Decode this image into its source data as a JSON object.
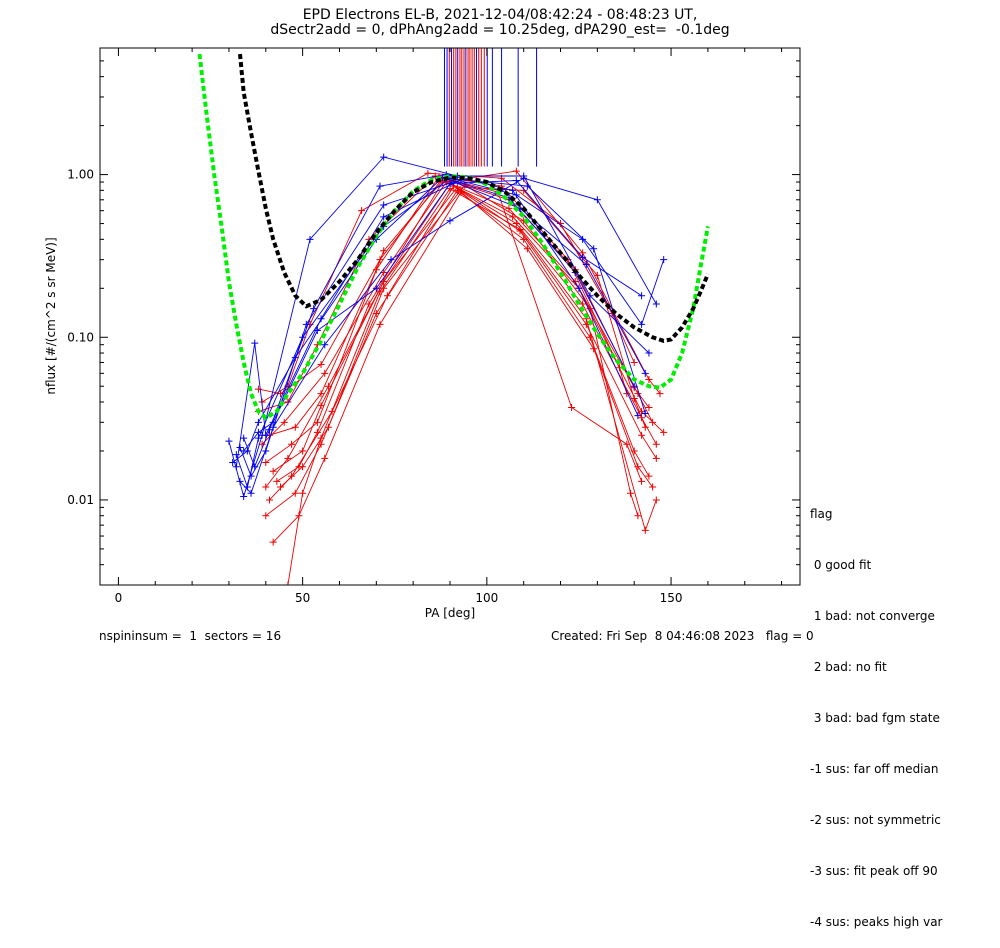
{
  "title_line1": "EPD Electrons EL-B, 2021-12-04/08:42:24 - 08:48:23 UT,",
  "title_line2": "dSectr2add = 0, dPhAng2add = 10.25deg, dPA290_est=  -0.1deg",
  "footer_left": "nspininsum =  1  sectors = 16",
  "footer_right": "Created: Fri Sep  8 04:46:08 2023   flag = 0",
  "flag_legend": {
    "title": "flag",
    "items": [
      " 0 good fit",
      " 1 bad: not converge",
      " 2 bad: no fit",
      " 3 bad: bad fgm state",
      "-1 sus: far off median",
      "-2 sus: not symmetric",
      "-3 sus: fit peak off 90",
      "-4 sus: peaks high var"
    ]
  },
  "chart_data": {
    "type": "line",
    "xlabel": "PA [deg]",
    "ylabel": "nflux [#/(cm^2 s sr MeV)]",
    "xlim": [
      -5,
      185
    ],
    "ylim": [
      0.003,
      6.0
    ],
    "yscale": "log",
    "xticks": [
      0,
      50,
      100,
      150
    ],
    "yticks": [
      {
        "v": 0.01,
        "label": "0.01"
      },
      {
        "v": 0.1,
        "label": "0.10"
      },
      {
        "v": 1.0,
        "label": "1.00"
      }
    ],
    "colors": {
      "red": "#ee0000",
      "blue": "#0000ee",
      "black": "#000000",
      "green": "#00ee00"
    },
    "series": [
      {
        "color": "red",
        "x": [
          38,
          44,
          55,
          71,
          88,
          106,
          124,
          140,
          144
        ],
        "y": [
          0.048,
          0.045,
          0.068,
          0.3,
          0.95,
          0.7,
          0.26,
          0.049,
          0.037
        ]
      },
      {
        "color": "red",
        "x": [
          39,
          45,
          56,
          72,
          89,
          107,
          125,
          141,
          145
        ],
        "y": [
          0.022,
          0.03,
          0.06,
          0.25,
          0.9,
          0.55,
          0.2,
          0.045,
          0.03
        ]
      },
      {
        "color": "red",
        "x": [
          40,
          46,
          57,
          72,
          90,
          108,
          126,
          142,
          146
        ],
        "y": [
          0.012,
          0.018,
          0.05,
          0.22,
          0.88,
          0.5,
          0.16,
          0.032,
          0.022
        ]
      },
      {
        "color": "red",
        "x": [
          41,
          47,
          58,
          73,
          91,
          109,
          127,
          142,
          146
        ],
        "y": [
          0.01,
          0.014,
          0.035,
          0.18,
          0.85,
          0.45,
          0.12,
          0.025,
          0.018
        ]
      },
      {
        "color": "red",
        "x": [
          40,
          48,
          55,
          70,
          92,
          110,
          128,
          140,
          144
        ],
        "y": [
          0.008,
          0.011,
          0.022,
          0.14,
          0.8,
          0.4,
          0.1,
          0.02,
          0.014
        ]
      },
      {
        "color": "red",
        "x": [
          42,
          49,
          56,
          71,
          93,
          111,
          129,
          141,
          145
        ],
        "y": [
          0.0055,
          0.008,
          0.018,
          0.12,
          0.78,
          0.35,
          0.085,
          0.016,
          0.012
        ]
      },
      {
        "color": "red",
        "x": [
          44,
          50,
          57,
          72,
          94,
          110,
          128,
          139,
          141
        ],
        "y": [
          0.012,
          0.016,
          0.028,
          0.2,
          0.86,
          0.52,
          0.15,
          0.011,
          0.008
        ]
      },
      {
        "color": "red",
        "x": [
          38,
          46,
          54,
          68,
          86,
          104,
          122,
          136,
          138
        ],
        "y": [
          0.035,
          0.04,
          0.09,
          0.4,
          0.98,
          0.85,
          0.3,
          0.065,
          0.045
        ]
      },
      {
        "color": "red",
        "x": [
          40,
          47,
          54,
          72,
          88,
          106,
          124,
          142,
          148
        ],
        "y": [
          0.017,
          0.022,
          0.03,
          0.34,
          0.92,
          0.62,
          0.22,
          0.035,
          0.026
        ]
      },
      {
        "color": "red",
        "x": [
          41,
          48,
          55,
          70,
          87,
          103,
          123,
          138,
          142
        ],
        "y": [
          0.025,
          0.028,
          0.045,
          0.26,
          0.97,
          0.78,
          0.037,
          0.022,
          0.013
        ]
      },
      {
        "color": "red",
        "x": [
          42,
          50,
          55,
          72,
          92,
          110,
          130,
          140,
          143
        ],
        "y": [
          0.015,
          0.02,
          0.038,
          0.22,
          0.84,
          0.8,
          0.24,
          0.042,
          0.028
        ]
      },
      {
        "color": "red",
        "x": [
          43,
          49,
          54,
          68,
          88,
          108,
          126,
          144,
          147
        ],
        "y": [
          0.013,
          0.016,
          0.026,
          0.16,
          0.9,
          1.05,
          0.33,
          0.055,
          0.045
        ]
      },
      {
        "color": "red",
        "x": [
          39,
          46,
          52,
          66,
          84,
          104,
          120,
          134,
          140
        ],
        "y": [
          0.04,
          0.05,
          0.12,
          0.6,
          1.02,
          0.95,
          0.5,
          0.14,
          0.07
        ]
      },
      {
        "color": "red",
        "x": [
          46,
          50,
          55,
          71,
          90,
          109,
          127,
          143,
          146
        ],
        "y": [
          0.003,
          0.011,
          0.024,
          0.19,
          0.82,
          0.46,
          0.13,
          0.0065,
          0.01
        ]
      },
      {
        "color": "blue",
        "x": [
          32,
          35,
          38,
          50,
          72,
          90,
          108,
          126,
          142,
          148
        ],
        "y": [
          0.019,
          0.012,
          0.024,
          0.1,
          0.48,
          0.95,
          0.75,
          0.4,
          0.12,
          0.3
        ]
      },
      {
        "color": "blue",
        "x": [
          33,
          36,
          40,
          51,
          72,
          91,
          109,
          127,
          143
        ],
        "y": [
          0.021,
          0.014,
          0.02,
          0.12,
          0.65,
          0.9,
          0.62,
          0.28,
          0.06
        ]
      },
      {
        "color": "blue",
        "x": [
          34,
          37,
          41,
          53,
          71,
          89,
          107,
          125,
          141
        ],
        "y": [
          0.024,
          0.016,
          0.027,
          0.15,
          0.85,
          1.0,
          0.8,
          0.2,
          0.033
        ]
      },
      {
        "color": "blue",
        "x": [
          30,
          34,
          39,
          52,
          72,
          92,
          110,
          128,
          144
        ],
        "y": [
          0.023,
          0.0105,
          0.025,
          0.4,
          1.28,
          0.98,
          0.98,
          0.18,
          0.08
        ]
      },
      {
        "color": "blue",
        "x": [
          31,
          35,
          38,
          48,
          70,
          88,
          106,
          124,
          140
        ],
        "y": [
          0.017,
          0.02,
          0.03,
          0.075,
          0.4,
          0.96,
          0.72,
          0.25,
          0.05
        ]
      },
      {
        "color": "blue",
        "x": [
          33,
          36,
          42,
          56,
          74,
          90,
          110,
          130,
          146
        ],
        "y": [
          0.013,
          0.011,
          0.028,
          0.09,
          0.3,
          0.52,
          0.95,
          0.7,
          0.16
        ]
      },
      {
        "color": "blue",
        "x": [
          32,
          37,
          40,
          55,
          72,
          93,
          111,
          129,
          143
        ],
        "y": [
          0.016,
          0.092,
          0.025,
          0.13,
          0.55,
          0.93,
          0.85,
          0.35,
          0.034
        ]
      },
      {
        "color": "blue",
        "x": [
          34,
          38,
          42,
          54,
          70,
          90,
          108,
          126,
          142
        ],
        "y": [
          0.02,
          0.026,
          0.03,
          0.11,
          0.2,
          0.88,
          0.92,
          0.31,
          0.18
        ]
      }
    ],
    "black_curve": {
      "x": [
        33,
        34,
        36,
        38,
        40,
        42,
        45,
        48,
        51,
        55,
        60,
        65,
        70,
        75,
        80,
        85,
        90,
        95,
        100,
        105,
        110,
        115,
        120,
        125,
        130,
        135,
        140,
        145,
        148,
        150,
        153,
        156,
        158,
        160
      ],
      "y": [
        5.5,
        3.2,
        1.8,
        1.05,
        0.62,
        0.4,
        0.25,
        0.18,
        0.155,
        0.17,
        0.22,
        0.3,
        0.44,
        0.6,
        0.78,
        0.9,
        0.96,
        0.95,
        0.9,
        0.78,
        0.62,
        0.45,
        0.33,
        0.24,
        0.18,
        0.14,
        0.115,
        0.1,
        0.095,
        0.097,
        0.115,
        0.15,
        0.19,
        0.245
      ]
    },
    "green_curve": {
      "x": [
        22,
        24,
        26,
        28,
        30,
        32,
        34,
        36,
        38,
        40,
        43,
        46,
        50,
        55,
        60,
        65,
        70,
        75,
        80,
        85,
        90,
        95,
        100,
        105,
        110,
        115,
        120,
        125,
        130,
        135,
        140,
        144,
        147,
        150,
        153,
        156,
        158,
        160
      ],
      "y": [
        5.5,
        2.3,
        1.0,
        0.48,
        0.22,
        0.12,
        0.07,
        0.045,
        0.035,
        0.032,
        0.035,
        0.045,
        0.06,
        0.095,
        0.16,
        0.27,
        0.42,
        0.6,
        0.79,
        0.93,
        0.98,
        0.96,
        0.87,
        0.72,
        0.55,
        0.38,
        0.25,
        0.16,
        0.105,
        0.073,
        0.055,
        0.05,
        0.049,
        0.055,
        0.08,
        0.15,
        0.27,
        0.48
      ]
    },
    "vertical_lines": [
      {
        "x": 88.5,
        "color": "blue"
      },
      {
        "x": 89.2,
        "color": "blue"
      },
      {
        "x": 89.8,
        "color": "red"
      },
      {
        "x": 90.4,
        "color": "blue"
      },
      {
        "x": 91.0,
        "color": "red"
      },
      {
        "x": 91.6,
        "color": "red"
      },
      {
        "x": 92.1,
        "color": "blue"
      },
      {
        "x": 92.7,
        "color": "red"
      },
      {
        "x": 93.2,
        "color": "red"
      },
      {
        "x": 93.8,
        "color": "red"
      },
      {
        "x": 94.3,
        "color": "blue"
      },
      {
        "x": 94.9,
        "color": "red"
      },
      {
        "x": 95.4,
        "color": "red"
      },
      {
        "x": 96.0,
        "color": "red"
      },
      {
        "x": 96.6,
        "color": "red"
      },
      {
        "x": 97.2,
        "color": "blue"
      },
      {
        "x": 97.8,
        "color": "red"
      },
      {
        "x": 98.5,
        "color": "red"
      },
      {
        "x": 99.3,
        "color": "red"
      },
      {
        "x": 100.1,
        "color": "blue"
      },
      {
        "x": 101.5,
        "color": "blue"
      },
      {
        "x": 104.0,
        "color": "blue"
      },
      {
        "x": 108.5,
        "color": "blue"
      },
      {
        "x": 113.5,
        "color": "blue"
      }
    ]
  }
}
